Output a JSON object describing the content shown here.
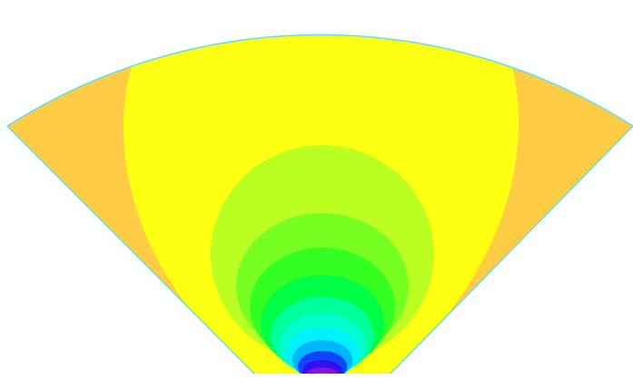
{
  "colors": {
    "background": "#ffffff",
    "outer_orange": "#ffcc44",
    "yellow": "#ffff11",
    "yellow_green": "#bbff22",
    "light_green": "#77ff22",
    "green": "#33ff22",
    "bright_green": "#00ff44",
    "mint": "#00ff99",
    "aqua": "#00ffcc",
    "cyan": "#00f0ff",
    "sky_blue": "#00b4ff",
    "blue": "#1144ff",
    "deep_blue": "#3311ee",
    "violet": "#8811dd",
    "magenta": "#dd11aa",
    "outline": "#66ddee"
  }
}
